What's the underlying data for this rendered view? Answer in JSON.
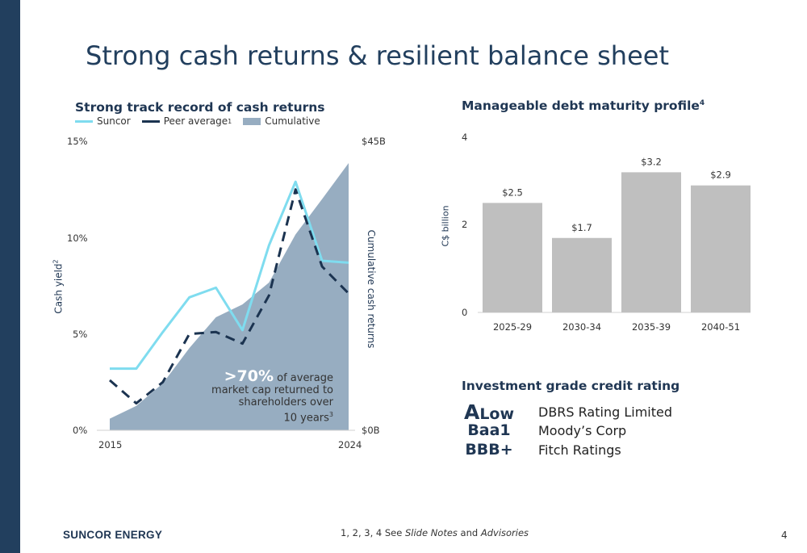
{
  "title": "Strong cash returns & resilient balance sheet",
  "colors": {
    "sidebar": "#223f5e",
    "suncor": "#7fdcef",
    "peer": "#1b3350",
    "cumulative": "#97adc1",
    "bars": "#bfbfbf"
  },
  "left_chart": {
    "heading": "Strong track record of cash returns",
    "legend": {
      "suncor": "Suncor",
      "peer": "Peer average",
      "peer_sup": "1",
      "cumulative": "Cumulative"
    },
    "y_left_label": "Cash yield",
    "y_left_label_sup": "2",
    "y_right_label": "Cumulative cash returns",
    "y_left_ticks": [
      "15%",
      "10%",
      "5%",
      "0%"
    ],
    "y_right_ticks": [
      "$45B",
      "$0B"
    ],
    "x_ticks": [
      "2015",
      "2024"
    ],
    "callout": {
      "big": ">70%",
      "line1": " of average",
      "line2": "market cap returned to",
      "line3": "shareholders over",
      "line4": "10 years",
      "sup": "3"
    }
  },
  "right_chart": {
    "heading": "Manageable debt maturity profile",
    "heading_sup": "4",
    "y_label": "C$ billion",
    "y_ticks": [
      "4",
      "2",
      "0"
    ]
  },
  "credit": {
    "heading": "Investment grade credit rating",
    "rows": [
      {
        "rating_first": "A",
        "rating_rest": "Low",
        "agency": "DBRS Rating Limited"
      },
      {
        "rating_first": "",
        "rating_rest": "Baa1",
        "agency": "Moody’s Corp"
      },
      {
        "rating_first": "",
        "rating_rest": "BBB+",
        "agency": "Fitch Ratings"
      }
    ]
  },
  "footer": {
    "brand": "SUNCOR ENERGY",
    "note_prefix": "1, 2, 3, 4 See ",
    "note_italic1": "Slide Notes",
    "note_mid": " and ",
    "note_italic2": "Advisories",
    "page": "4"
  },
  "chart_data": [
    {
      "type": "line",
      "title": "Strong track record of cash returns",
      "ylabel": "Cash yield",
      "y2label": "Cumulative cash returns",
      "ylim": [
        0,
        15
      ],
      "y2lim": [
        0,
        45
      ],
      "x": [
        2015,
        2016,
        2017,
        2018,
        2019,
        2020,
        2021,
        2022,
        2023,
        2024
      ],
      "series": [
        {
          "name": "Suncor",
          "axis": "left",
          "style": "solid",
          "values": [
            3.2,
            3.2,
            5.1,
            6.9,
            7.4,
            5.2,
            9.6,
            12.9,
            8.8,
            8.7
          ]
        },
        {
          "name": "Peer average",
          "axis": "left",
          "style": "dashed",
          "values": [
            2.6,
            1.4,
            2.5,
            5.0,
            5.1,
            4.5,
            7.0,
            12.5,
            8.5,
            7.1
          ]
        },
        {
          "name": "Cumulative",
          "axis": "right",
          "style": "area",
          "values": [
            1.8,
            3.8,
            7.3,
            12.8,
            17.6,
            19.6,
            23.0,
            30.5,
            36.0,
            41.6
          ]
        }
      ],
      "legend": "top-left"
    },
    {
      "type": "bar",
      "title": "Manageable debt maturity profile",
      "ylabel": "C$ billion",
      "ylim": [
        0,
        4
      ],
      "categories": [
        "2025-29",
        "2030-34",
        "2035-39",
        "2040-51"
      ],
      "values": [
        2.5,
        1.7,
        3.2,
        2.9
      ],
      "data_labels": [
        "$2.5",
        "$1.7",
        "$3.2",
        "$2.9"
      ]
    }
  ]
}
